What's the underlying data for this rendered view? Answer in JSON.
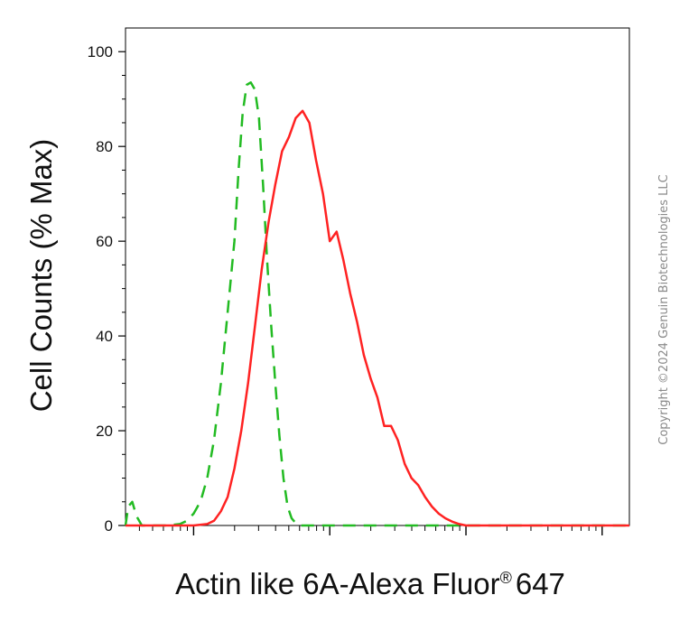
{
  "chart_data": {
    "type": "line",
    "title": "",
    "xlabel": "Actin like 6A-Alexa Fluor",
    "xlabel_mark": "®",
    "xlabel_suffix": "647",
    "ylabel": "Cell Counts (% Max)",
    "xscale": "log",
    "xlim": [
      -0.5,
      3.2
    ],
    "ylim": [
      0,
      105
    ],
    "yticks": [
      0,
      20,
      40,
      60,
      80,
      100
    ],
    "ytick_labels": [
      "0",
      "20",
      "40",
      "60",
      "80",
      "100"
    ],
    "grid": false,
    "legend": "none",
    "series": [
      {
        "style": "dashed",
        "color": "#22bb22",
        "x": [
          -0.5,
          -0.48,
          -0.45,
          -0.42,
          -0.38,
          -0.3,
          -0.2,
          -0.1,
          -0.05,
          0.0,
          0.03,
          0.06,
          0.1,
          0.15,
          0.2,
          0.25,
          0.3,
          0.33,
          0.36,
          0.39,
          0.42,
          0.45,
          0.48,
          0.51,
          0.54,
          0.57,
          0.6,
          0.63,
          0.66,
          0.69,
          0.72,
          0.75,
          0.78,
          0.81,
          0.85,
          0.9,
          1.0,
          1.5,
          2.0,
          2.5,
          3.2
        ],
        "y": [
          0,
          4,
          5,
          2,
          0,
          0,
          0,
          0.3,
          1,
          2.5,
          4,
          6,
          10,
          18,
          30,
          45,
          60,
          75,
          87,
          93,
          93.5,
          92,
          86,
          72,
          56,
          42,
          30,
          19,
          10,
          4,
          1.5,
          0.5,
          0,
          0,
          0,
          0,
          0,
          0,
          0,
          0,
          0
        ]
      },
      {
        "style": "solid",
        "color": "#ff2222",
        "x": [
          -0.5,
          0.0,
          0.1,
          0.15,
          0.2,
          0.25,
          0.3,
          0.35,
          0.4,
          0.45,
          0.5,
          0.55,
          0.6,
          0.65,
          0.7,
          0.75,
          0.8,
          0.85,
          0.9,
          0.95,
          1.0,
          1.05,
          1.1,
          1.15,
          1.2,
          1.25,
          1.3,
          1.35,
          1.4,
          1.45,
          1.5,
          1.55,
          1.6,
          1.65,
          1.7,
          1.75,
          1.8,
          1.85,
          1.9,
          1.95,
          2.0,
          2.05,
          2.1,
          2.15,
          2.2,
          2.25,
          2.3,
          2.35,
          2.4,
          2.5,
          3.2
        ],
        "y": [
          0,
          0,
          0.3,
          1,
          3,
          6,
          12,
          20,
          30,
          42,
          54,
          64,
          72,
          79,
          82,
          86,
          87.5,
          85,
          77,
          70,
          60,
          62,
          56,
          49,
          43,
          36,
          31,
          27,
          21,
          21,
          18,
          13,
          10,
          8.5,
          6,
          4,
          2.5,
          1.5,
          0.8,
          0.3,
          0,
          0,
          0,
          0,
          0,
          0,
          0,
          0,
          0,
          0,
          0
        ]
      }
    ]
  },
  "copyright_text": "Copyright ©2024 Genuin Biotechnologies LLC"
}
